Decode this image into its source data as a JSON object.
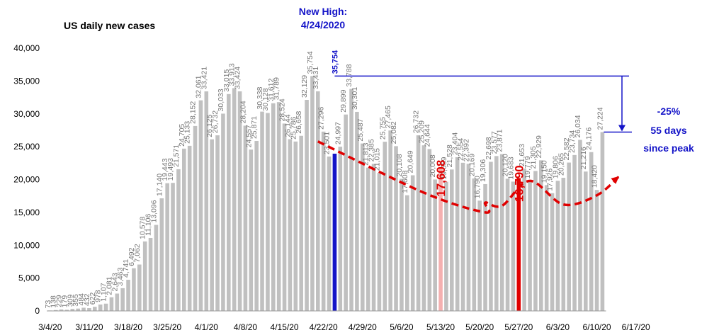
{
  "chart_data": {
    "type": "bar",
    "title": "US daily new cases",
    "ylim": [
      0,
      40000
    ],
    "yticks": [
      "0",
      "5,000",
      "10,000",
      "15,000",
      "20,000",
      "25,000",
      "30,000",
      "35,000",
      "40,000"
    ],
    "xtick_labels": [
      "3/4/20",
      "3/11/20",
      "3/18/20",
      "3/25/20",
      "4/1/20",
      "4/8/20",
      "4/15/20",
      "4/22/20",
      "4/29/20",
      "5/6/20",
      "5/13/20",
      "5/20/20",
      "5/27/20",
      "6/3/20",
      "6/10/20",
      "6/17/20"
    ],
    "start_date": "3/4/20",
    "values": [
      73,
      138,
      229,
      179,
      309,
      355,
      484,
      432,
      622,
      978,
      1107,
      2081,
      2643,
      3463,
      4741,
      6492,
      7062,
      10578,
      11106,
      13096,
      17140,
      19443,
      19493,
      21571,
      24705,
      25133,
      28152,
      32061,
      33421,
      26125,
      26732,
      30033,
      33015,
      33913,
      33424,
      28204,
      24557,
      25871,
      30338,
      30128,
      31612,
      31789,
      28524,
      26144,
      25786,
      26658,
      32129,
      35754,
      33431,
      27296,
      23501,
      23937,
      24997,
      29899,
      33788,
      30301,
      25487,
      21813,
      22385,
      21015,
      25755,
      27465,
      25082,
      20108,
      17608,
      20649,
      26732,
      25209,
      24644,
      20008,
      21914,
      19659,
      21528,
      23404,
      22554,
      22392,
      20169,
      16790,
      19306,
      22698,
      23577,
      23871,
      20120,
      19683,
      20222,
      21653,
      19779,
      21305,
      22929,
      19150,
      17926,
      19806,
      20265,
      22582,
      23734,
      26034,
      21216,
      24176,
      18420,
      27224
    ],
    "bar_color": "#c0c0c0",
    "highlights": [
      {
        "date": "4/24/20",
        "value": 35754,
        "label": "35,754",
        "color": "#1414c8"
      },
      {
        "date": "5/13/20",
        "value": 17608,
        "label": "17,608",
        "color": "#f4b0b0"
      },
      {
        "date": "5/27/20",
        "value": 16790,
        "label": "16,790",
        "color": "#e00000"
      }
    ],
    "annotations": {
      "new_high_line1": "New High:",
      "new_high_line2": "4/24/2020",
      "change_line1": "-25%",
      "change_line2": "55 days",
      "change_line3": "since peak",
      "end_value": 27224
    },
    "trend_line": {
      "color": "#e00000",
      "style": "dashed",
      "points": [
        [
          48,
          25800
        ],
        [
          67,
          18000
        ],
        [
          78,
          15000
        ],
        [
          78,
          16500
        ],
        [
          81,
          16000
        ],
        [
          86,
          19800
        ],
        [
          92,
          16200
        ],
        [
          98,
          17600
        ],
        [
          102,
          20500
        ]
      ]
    }
  }
}
